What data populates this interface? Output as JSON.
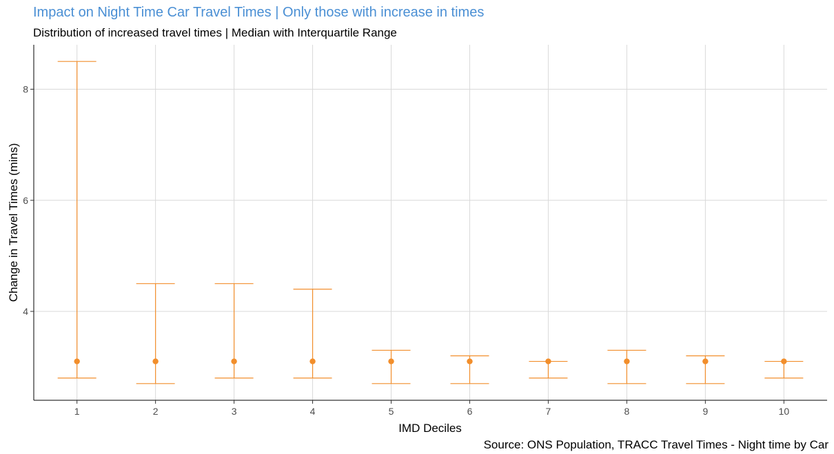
{
  "chart_data": {
    "type": "errorbar",
    "title": "Impact on Night Time Car Travel Times | Only those with increase in times",
    "subtitle": "Distribution of increased travel times | Median with Interquartile Range",
    "caption": "Source: ONS Population, TRACC Travel Times - Night time by Car",
    "xlabel": "IMD Deciles",
    "ylabel": "Change in Travel Times (mins)",
    "categories": [
      "1",
      "2",
      "3",
      "4",
      "5",
      "6",
      "7",
      "8",
      "9",
      "10"
    ],
    "median": [
      3.1,
      3.1,
      3.1,
      3.1,
      3.1,
      3.1,
      3.1,
      3.1,
      3.1,
      3.1
    ],
    "lower": [
      2.8,
      2.7,
      2.8,
      2.8,
      2.7,
      2.7,
      2.8,
      2.7,
      2.7,
      2.8
    ],
    "upper": [
      8.5,
      4.5,
      4.5,
      4.4,
      3.3,
      3.2,
      3.1,
      3.3,
      3.2,
      3.1
    ],
    "y_ticks": [
      4,
      6,
      8
    ],
    "ylim": [
      2.4,
      8.8
    ],
    "grid": true,
    "colors": {
      "series": "#f28e2b",
      "title": "#4a8fd4",
      "grid": "#d9d9d9"
    }
  }
}
